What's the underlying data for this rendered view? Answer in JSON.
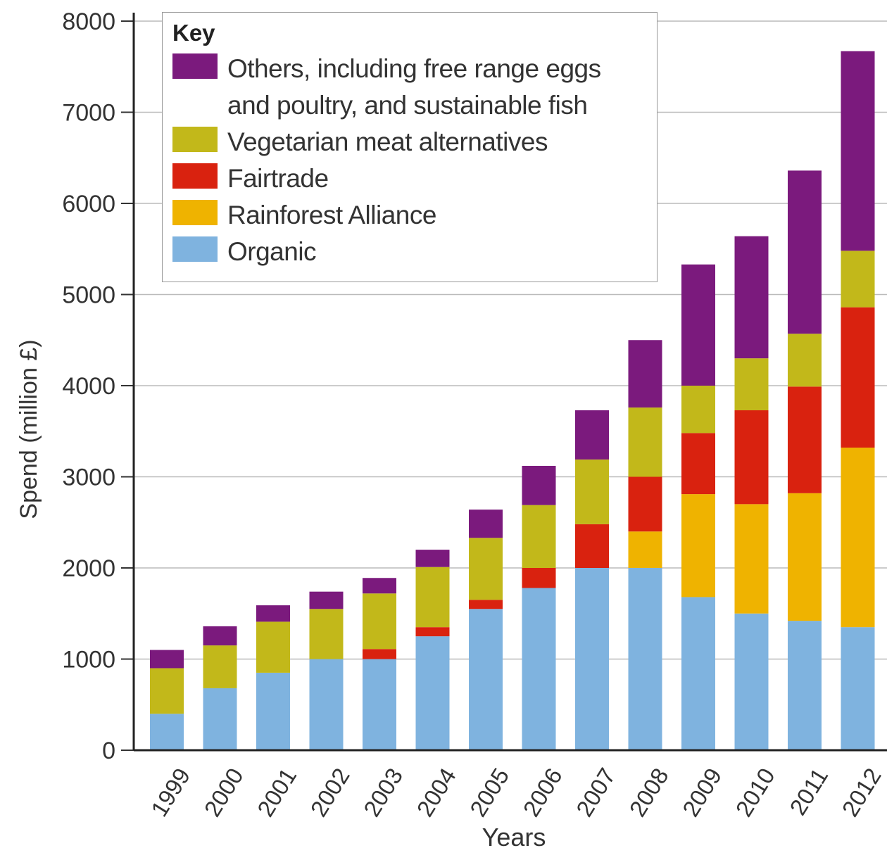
{
  "chart_data": {
    "type": "stacked_bar",
    "legend_title": "Key",
    "x_label": "Years",
    "y_label": "Spend (million £)",
    "categories": [
      "1999",
      "2000",
      "2001",
      "2002",
      "2003",
      "2004",
      "2005",
      "2006",
      "2007",
      "2008",
      "2009",
      "2010",
      "2011",
      "2012"
    ],
    "series": [
      {
        "name": "Organic",
        "color": "#7fb3df",
        "values": [
          400,
          680,
          850,
          1000,
          1000,
          1250,
          1550,
          1780,
          2000,
          2000,
          1680,
          1500,
          1420,
          1350
        ]
      },
      {
        "name": "Rainforest Alliance",
        "color": "#efb300",
        "values": [
          0,
          0,
          0,
          0,
          0,
          0,
          0,
          0,
          0,
          400,
          1130,
          1200,
          1400,
          1970
        ]
      },
      {
        "name": "Fairtrade",
        "color": "#d9220f",
        "values": [
          0,
          0,
          0,
          0,
          110,
          100,
          100,
          220,
          480,
          600,
          670,
          1030,
          1170,
          1540
        ]
      },
      {
        "name": "Vegetarian meat alternatives",
        "color": "#c2b81a",
        "values": [
          500,
          470,
          560,
          550,
          610,
          660,
          680,
          690,
          710,
          760,
          520,
          570,
          580,
          620
        ]
      },
      {
        "name": "Others, including free range eggs and poultry, and sustainable fish",
        "color": "#7b1a7d",
        "values": [
          200,
          210,
          180,
          190,
          170,
          190,
          310,
          430,
          540,
          740,
          1330,
          1340,
          1790,
          2190
        ]
      }
    ],
    "ylim": [
      0,
      8000
    ],
    "yticks": [
      0,
      1000,
      2000,
      3000,
      4000,
      5000,
      6000,
      7000,
      8000
    ],
    "grid": true
  }
}
